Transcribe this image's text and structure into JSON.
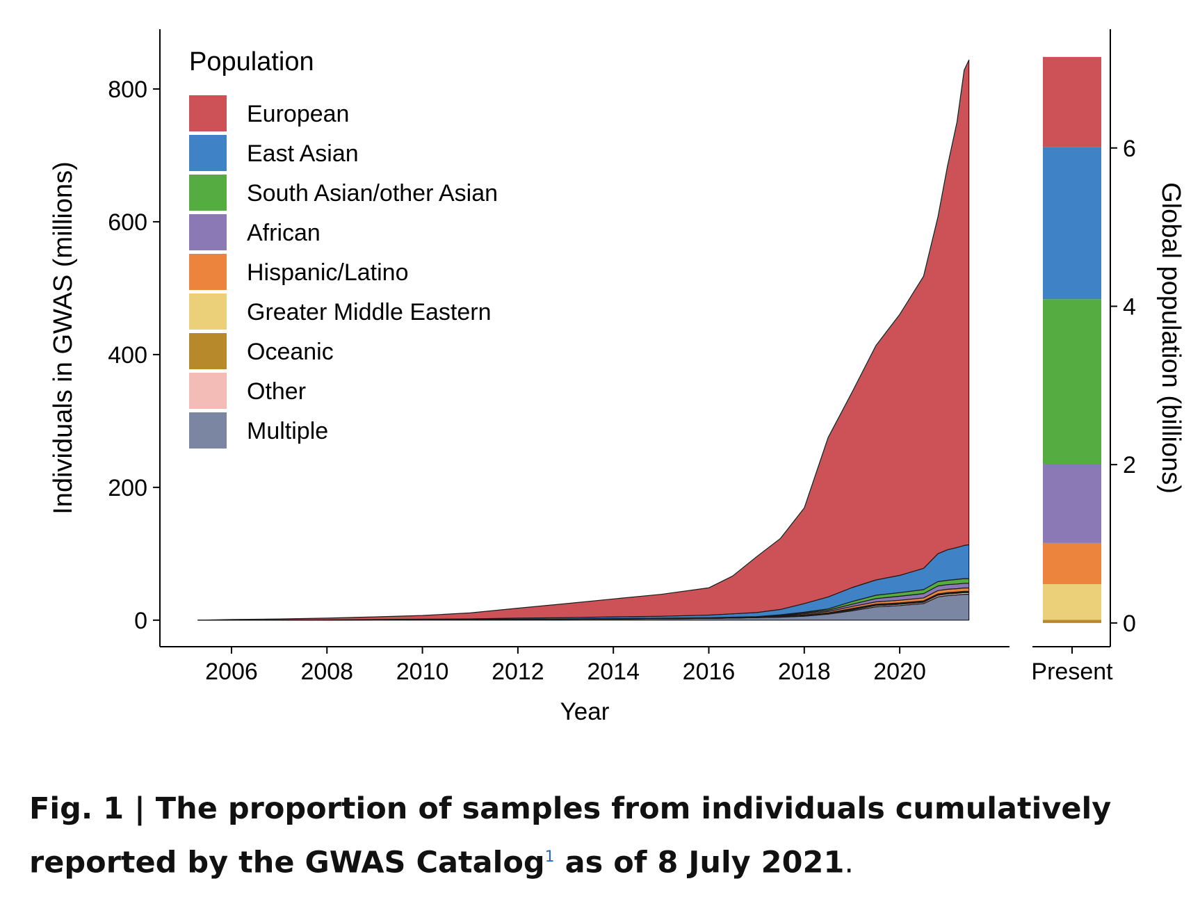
{
  "chart_data": [
    {
      "type": "area",
      "stacked": true,
      "xlabel": "Year",
      "ylabel": "Individuals in GWAS (millions)",
      "xlim": [
        2004.5,
        2022.3
      ],
      "ylim": [
        -40,
        890
      ],
      "xticks": [
        2006,
        2008,
        2010,
        2012,
        2014,
        2016,
        2018,
        2020
      ],
      "yticks": [
        0,
        200,
        400,
        600,
        800
      ],
      "legend_title": "Population",
      "legend_position": "top-left",
      "grid": false,
      "x": [
        2005.3,
        2006,
        2007,
        2008,
        2009,
        2010,
        2011,
        2012,
        2013,
        2014,
        2015,
        2016,
        2016.5,
        2017,
        2017.5,
        2018,
        2018.5,
        2019,
        2019.5,
        2020,
        2020.5,
        2020.8,
        2021,
        2021.2,
        2021.35,
        2021.45
      ],
      "series": [
        {
          "name": "Multiple",
          "color": "#7b87a2",
          "values": [
            0,
            0,
            0.1,
            0.2,
            0.4,
            0.6,
            0.8,
            1.1,
            1.4,
            1.7,
            2.1,
            2.6,
            3.2,
            3.8,
            4.5,
            6,
            9,
            14,
            20,
            22,
            25,
            35,
            37,
            38,
            39,
            39
          ]
        },
        {
          "name": "Other",
          "color": "#f4bcb6",
          "values": [
            0,
            0,
            0,
            0,
            0,
            0,
            0,
            0,
            0,
            0,
            0,
            0,
            0,
            0,
            0.5,
            1,
            1,
            1.5,
            2,
            2,
            2,
            2.5,
            2.5,
            2.5,
            2.5,
            2.5
          ]
        },
        {
          "name": "Oceanic",
          "color": "#b8892a",
          "values": [
            0,
            0,
            0,
            0,
            0,
            0,
            0,
            0,
            0,
            0,
            0,
            0,
            0,
            0,
            0,
            0.5,
            0.5,
            1,
            1,
            1,
            1,
            1,
            1,
            1,
            1,
            1
          ]
        },
        {
          "name": "Greater Middle Eastern",
          "color": "#ebd079",
          "values": [
            0,
            0,
            0,
            0,
            0,
            0,
            0,
            0,
            0,
            0,
            0,
            0,
            0,
            0,
            0.5,
            0.5,
            0.5,
            1,
            1,
            1,
            1,
            1,
            1,
            1,
            1,
            1
          ]
        },
        {
          "name": "Hispanic/Latino",
          "color": "#ed843e",
          "values": [
            0,
            0,
            0,
            0,
            0,
            0,
            0,
            0.1,
            0.1,
            0.2,
            0.2,
            0.3,
            0.4,
            0.5,
            1,
            1.5,
            2,
            3,
            3.5,
            4,
            4.5,
            5,
            5,
            5,
            5,
            5
          ]
        },
        {
          "name": "African",
          "color": "#8b79b6",
          "values": [
            0,
            0,
            0,
            0,
            0,
            0.1,
            0.1,
            0.2,
            0.2,
            0.3,
            0.4,
            0.5,
            0.6,
            0.7,
            1,
            1.5,
            2,
            3.5,
            5,
            6,
            6.5,
            7,
            7,
            7,
            7,
            7
          ]
        },
        {
          "name": "South Asian/other Asian",
          "color": "#55ad42",
          "values": [
            0,
            0,
            0,
            0,
            0,
            0,
            0,
            0.1,
            0.1,
            0.2,
            0.2,
            0.3,
            0.3,
            0.4,
            0.6,
            1,
            2,
            4,
            5,
            5.5,
            6,
            6.5,
            6.5,
            7,
            7,
            7
          ]
        },
        {
          "name": "East Asian",
          "color": "#3f83c6",
          "values": [
            0,
            0.1,
            0.2,
            0.3,
            0.5,
            0.8,
            1,
            1.5,
            2,
            2.5,
            3,
            4,
            5,
            6,
            8,
            13,
            18,
            21,
            23,
            26,
            32,
            42,
            46,
            48,
            50,
            51
          ]
        },
        {
          "name": "European",
          "color": "#cd5257",
          "values": [
            0,
            0.8,
            1.5,
            2.5,
            4,
            5.5,
            9,
            15,
            21,
            27,
            33,
            41,
            57,
            84,
            107,
            144,
            240,
            294,
            353,
            393,
            440,
            507,
            578,
            641,
            716,
            730
          ]
        }
      ]
    },
    {
      "type": "bar",
      "stacked": true,
      "xlabel": "",
      "ylabel": "Global population (billions)",
      "categories": [
        "Present"
      ],
      "ylim": [
        -0.3,
        7.5
      ],
      "yticks": [
        0,
        2,
        4,
        6
      ],
      "series": [
        {
          "name": "Oceanic",
          "color": "#b8892a",
          "values": [
            0.04
          ]
        },
        {
          "name": "Greater Middle Eastern",
          "color": "#ebd079",
          "values": [
            0.45
          ]
        },
        {
          "name": "Hispanic/Latino",
          "color": "#ed843e",
          "values": [
            0.52
          ]
        },
        {
          "name": "African",
          "color": "#8b79b6",
          "values": [
            1.0
          ]
        },
        {
          "name": "South Asian/other Asian",
          "color": "#55ad42",
          "values": [
            2.08
          ]
        },
        {
          "name": "East Asian",
          "color": "#3f83c6",
          "values": [
            1.92
          ]
        },
        {
          "name": "European",
          "color": "#cd5257",
          "values": [
            1.14
          ]
        }
      ]
    }
  ],
  "legend": {
    "title": "Population",
    "items": [
      {
        "label": "European",
        "color": "#cd5257"
      },
      {
        "label": "East Asian",
        "color": "#3f83c6"
      },
      {
        "label": "South Asian/other Asian",
        "color": "#55ad42"
      },
      {
        "label": "African",
        "color": "#8b79b6"
      },
      {
        "label": "Hispanic/Latino",
        "color": "#ed843e"
      },
      {
        "label": "Greater Middle Eastern",
        "color": "#ebd079"
      },
      {
        "label": "Oceanic",
        "color": "#b8892a"
      },
      {
        "label": "Other",
        "color": "#f4bcb6"
      },
      {
        "label": "Multiple",
        "color": "#7b87a2"
      }
    ]
  },
  "caption": {
    "main": "Fig. 1 | The proportion of samples from individuals cumulatively reported by the GWAS Catalog",
    "ref": "1",
    "tail": " as of 8 July 2021",
    "period": "."
  }
}
